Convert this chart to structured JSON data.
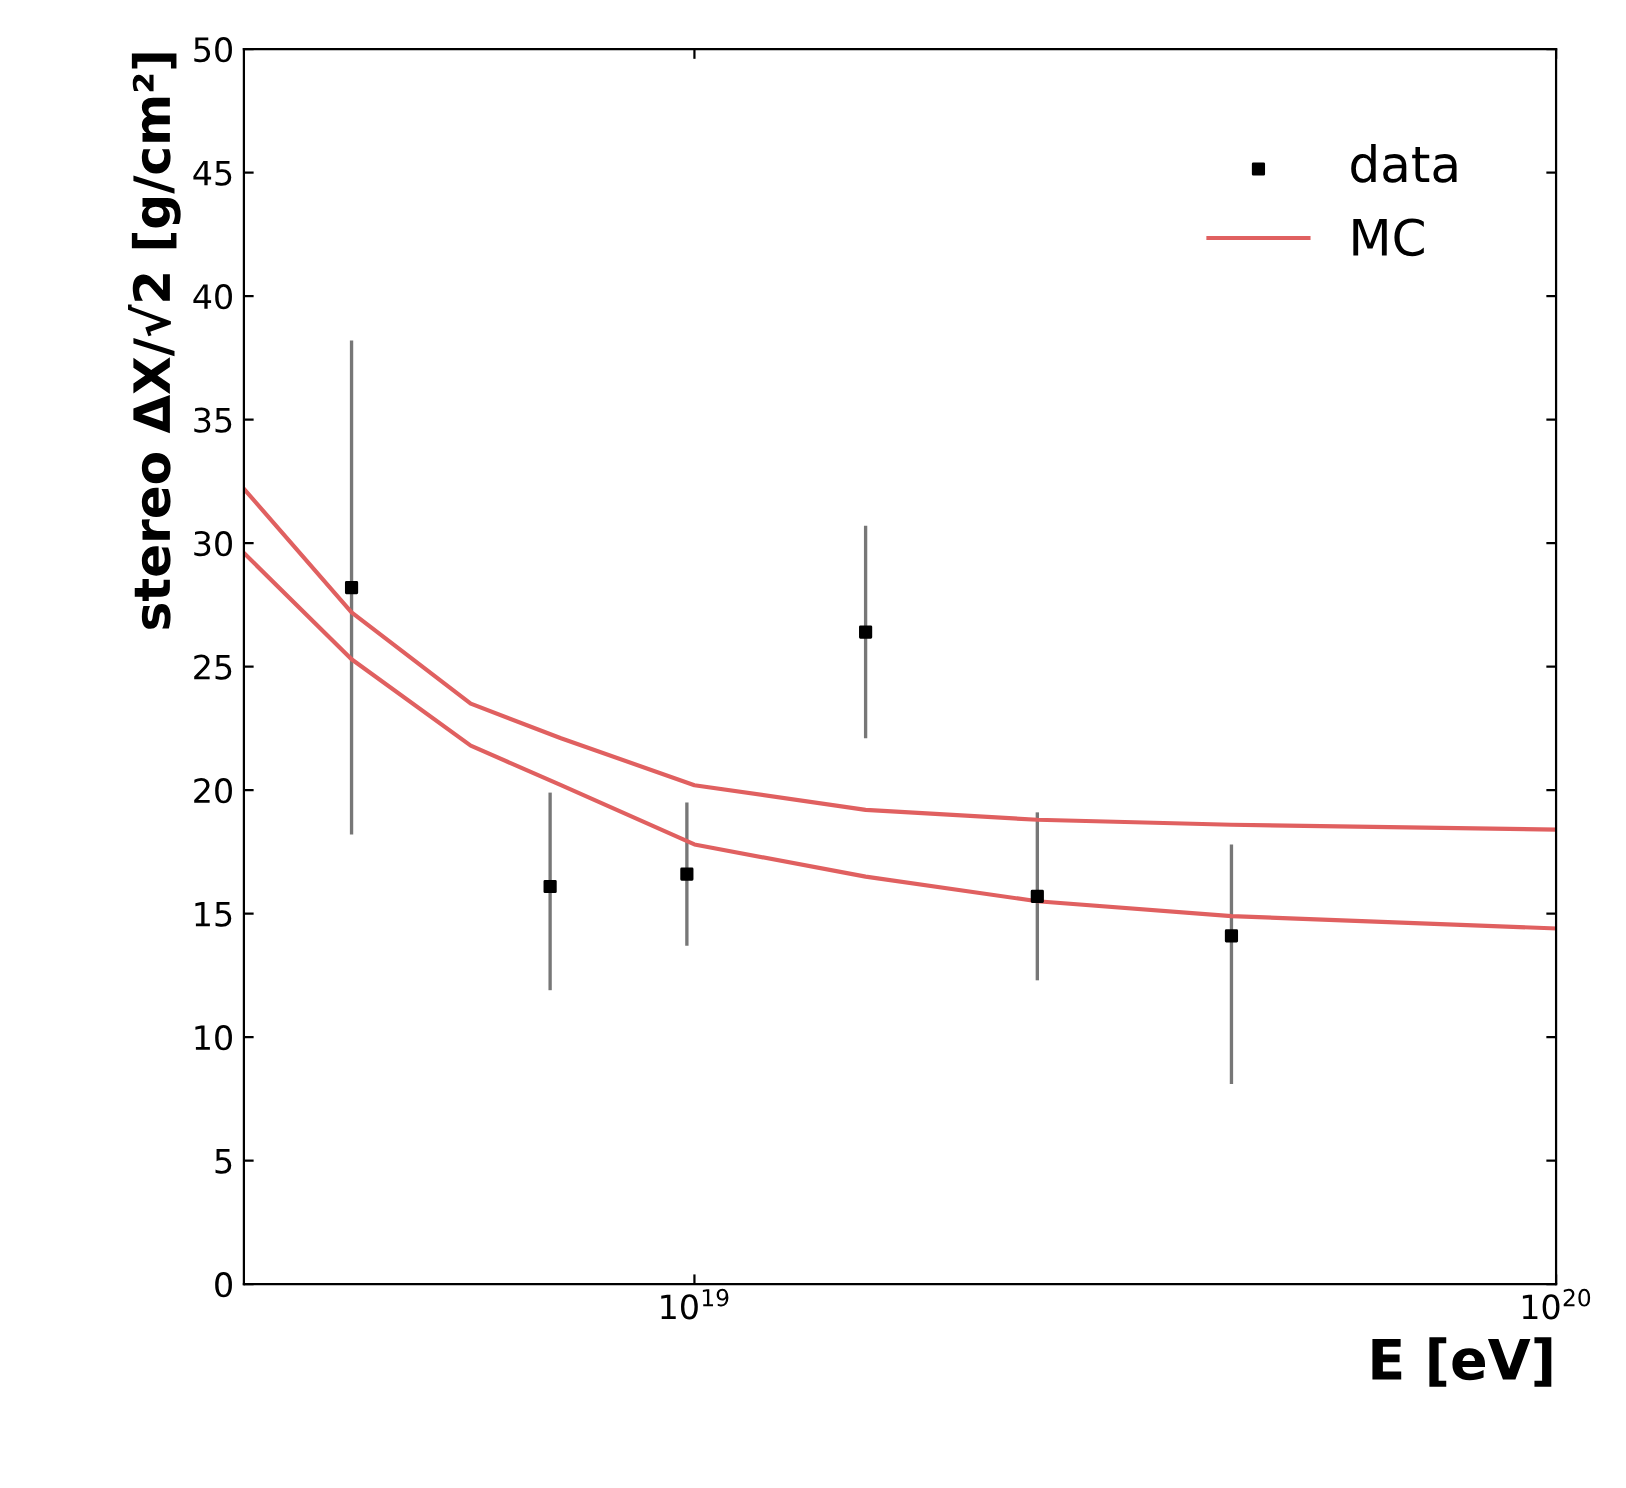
{
  "chart_data": {
    "type": "scatter",
    "xlabel": "E [eV]",
    "ylabel": "stereo ΔX/√2 [g/cm²]",
    "log": "x",
    "xlim": [
      3e+18,
      1e+20
    ],
    "xticks": [
      {
        "value": 1e+19,
        "label": "10$^{19}$"
      },
      {
        "value": 1e+20,
        "label": "10$^{20}$"
      }
    ],
    "ylim": [
      0,
      50
    ],
    "yticks": [
      0,
      5,
      10,
      15,
      20,
      25,
      30,
      35,
      40,
      45,
      50
    ],
    "grid": false,
    "legend": "top right",
    "series": [
      {
        "name": "data",
        "color": "#000000",
        "marker": "square",
        "x": [
          4e+18,
          6.8e+18,
          9.8e+18,
          1.58e+19,
          2.5e+19,
          4.2e+19
        ],
        "values": [
          28.2,
          16.1,
          16.6,
          26.4,
          15.7,
          14.1
        ],
        "errors": [
          [
            18.2,
            38.2
          ],
          [
            11.9,
            19.9
          ],
          [
            13.7,
            19.5
          ],
          [
            22.1,
            30.7
          ],
          [
            12.3,
            19.1
          ],
          [
            8.1,
            17.8
          ]
        ]
      },
      {
        "name": "MC",
        "type": "line",
        "color": "#e06060",
        "marker": "none",
        "line_style": "solid",
        "x": [
          3e+18,
          4e+18,
          5.5e+18,
          7e+18,
          1e+19,
          1.58e+19,
          2.5e+19,
          4.2e+19,
          1e+20
        ],
        "values": [
          32.2,
          27.2,
          23.5,
          22.1,
          20.2,
          19.2,
          18.8,
          18.6,
          18.4
        ]
      },
      {
        "type": "line",
        "color": "#e06060",
        "marker": "none",
        "line_style": "solid",
        "x": [
          3e+18,
          4e+18,
          5.5e+18,
          7e+18,
          1e+19,
          1.58e+19,
          2.5e+19,
          4.2e+19,
          1e+20
        ],
        "values": [
          29.6,
          25.3,
          21.8,
          20.2,
          17.8,
          16.5,
          15.5,
          14.9,
          14.4
        ]
      }
    ]
  }
}
